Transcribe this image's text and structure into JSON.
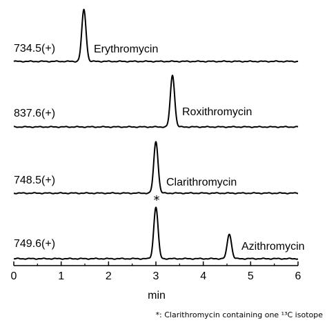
{
  "chart_data": {
    "type": "line",
    "xlabel": "min",
    "xlim": [
      0,
      6
    ],
    "x_ticks": [
      "0",
      "1",
      "2",
      "3",
      "4",
      "5",
      "6"
    ],
    "grid": false,
    "legend": "none",
    "series": [
      {
        "name": "Erythromycin",
        "mz_label": "734.5(+)",
        "peaks": [
          {
            "x": 1.48,
            "height": 1.0
          }
        ]
      },
      {
        "name": "Roxithromycin",
        "mz_label": "837.6(+)",
        "peaks": [
          {
            "x": 3.35,
            "height": 1.0
          }
        ]
      },
      {
        "name": "Clarithromycin",
        "mz_label": "748.5(+)",
        "peaks": [
          {
            "x": 3.0,
            "height": 1.0
          }
        ]
      },
      {
        "name": "Azithromycin",
        "mz_label": "749.6(+)",
        "peaks": [
          {
            "x": 3.0,
            "height": 1.0
          },
          {
            "x": 4.55,
            "height": 0.48
          }
        ]
      }
    ],
    "marker": "*",
    "footnote": "*: Clarithromycin containing one ¹³C isotope"
  }
}
